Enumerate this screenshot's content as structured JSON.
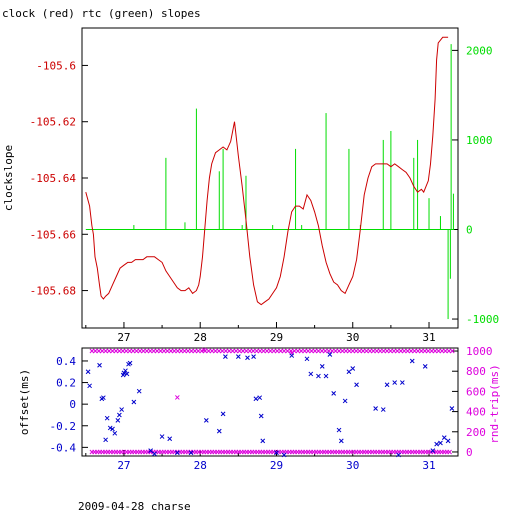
{
  "title": "clock (red) rtc (green) slopes",
  "footer": "2009-04-28 charse",
  "colors": {
    "clock": "#cc0000",
    "rtc": "#00dd00",
    "offset": "#0000cc",
    "rtt": "#dd00dd",
    "axis": "#000000"
  },
  "chart_data": [
    {
      "type": "line",
      "ylabel": "clockslope",
      "y2label": "",
      "xlim": [
        26.45,
        31.38
      ],
      "ylim": [
        -105.6933,
        -105.5867
      ],
      "y2lim": [
        -1100,
        2250
      ],
      "xticks": [
        "27",
        "28",
        "29",
        "30",
        "31"
      ],
      "yticks": [
        "-105.6",
        "-105.62",
        "-105.64",
        "-105.66",
        "-105.68"
      ],
      "y2ticks": [
        "2000",
        "1000",
        "0",
        "-1000"
      ],
      "grid": false,
      "series": [
        {
          "name": "clock",
          "axis": "left",
          "points": [
            [
              26.5,
              -105.645
            ],
            [
              26.55,
              -105.65
            ],
            [
              26.58,
              -105.657
            ],
            [
              26.6,
              -105.66
            ],
            [
              26.62,
              -105.668
            ],
            [
              26.65,
              -105.672
            ],
            [
              26.68,
              -105.678
            ],
            [
              26.7,
              -105.682
            ],
            [
              26.73,
              -105.683
            ],
            [
              26.76,
              -105.682
            ],
            [
              26.8,
              -105.681
            ],
            [
              26.85,
              -105.678
            ],
            [
              26.9,
              -105.675
            ],
            [
              26.95,
              -105.672
            ],
            [
              27.0,
              -105.671
            ],
            [
              27.05,
              -105.67
            ],
            [
              27.1,
              -105.67
            ],
            [
              27.15,
              -105.669
            ],
            [
              27.2,
              -105.669
            ],
            [
              27.25,
              -105.669
            ],
            [
              27.3,
              -105.668
            ],
            [
              27.35,
              -105.668
            ],
            [
              27.4,
              -105.668
            ],
            [
              27.45,
              -105.669
            ],
            [
              27.5,
              -105.67
            ],
            [
              27.55,
              -105.673
            ],
            [
              27.6,
              -105.675
            ],
            [
              27.65,
              -105.677
            ],
            [
              27.7,
              -105.679
            ],
            [
              27.75,
              -105.68
            ],
            [
              27.8,
              -105.68
            ],
            [
              27.85,
              -105.679
            ],
            [
              27.9,
              -105.681
            ],
            [
              27.95,
              -105.68
            ],
            [
              27.98,
              -105.678
            ],
            [
              28.0,
              -105.675
            ],
            [
              28.03,
              -105.668
            ],
            [
              28.06,
              -105.658
            ],
            [
              28.09,
              -105.648
            ],
            [
              28.12,
              -105.64
            ],
            [
              28.15,
              -105.635
            ],
            [
              28.2,
              -105.631
            ],
            [
              28.25,
              -105.63
            ],
            [
              28.3,
              -105.629
            ],
            [
              28.35,
              -105.63
            ],
            [
              28.4,
              -105.627
            ],
            [
              28.45,
              -105.62
            ],
            [
              28.47,
              -105.625
            ],
            [
              28.5,
              -105.632
            ],
            [
              28.55,
              -105.643
            ],
            [
              28.6,
              -105.655
            ],
            [
              28.65,
              -105.668
            ],
            [
              28.7,
              -105.678
            ],
            [
              28.75,
              -105.684
            ],
            [
              28.8,
              -105.685
            ],
            [
              28.85,
              -105.684
            ],
            [
              28.9,
              -105.683
            ],
            [
              28.95,
              -105.681
            ],
            [
              29.0,
              -105.679
            ],
            [
              29.05,
              -105.675
            ],
            [
              29.1,
              -105.668
            ],
            [
              29.15,
              -105.659
            ],
            [
              29.2,
              -105.652
            ],
            [
              29.25,
              -105.65
            ],
            [
              29.3,
              -105.65
            ],
            [
              29.35,
              -105.651
            ],
            [
              29.4,
              -105.646
            ],
            [
              29.45,
              -105.648
            ],
            [
              29.5,
              -105.652
            ],
            [
              29.55,
              -105.657
            ],
            [
              29.6,
              -105.664
            ],
            [
              29.65,
              -105.67
            ],
            [
              29.7,
              -105.674
            ],
            [
              29.75,
              -105.677
            ],
            [
              29.8,
              -105.678
            ],
            [
              29.85,
              -105.68
            ],
            [
              29.9,
              -105.681
            ],
            [
              29.95,
              -105.678
            ],
            [
              30.0,
              -105.675
            ],
            [
              30.05,
              -105.669
            ],
            [
              30.1,
              -105.658
            ],
            [
              30.15,
              -105.646
            ],
            [
              30.2,
              -105.64
            ],
            [
              30.25,
              -105.636
            ],
            [
              30.3,
              -105.635
            ],
            [
              30.35,
              -105.635
            ],
            [
              30.4,
              -105.635
            ],
            [
              30.45,
              -105.635
            ],
            [
              30.5,
              -105.636
            ],
            [
              30.55,
              -105.635
            ],
            [
              30.6,
              -105.636
            ],
            [
              30.65,
              -105.637
            ],
            [
              30.7,
              -105.638
            ],
            [
              30.75,
              -105.64
            ],
            [
              30.8,
              -105.643
            ],
            [
              30.85,
              -105.645
            ],
            [
              30.9,
              -105.644
            ],
            [
              30.93,
              -105.645
            ],
            [
              30.96,
              -105.643
            ],
            [
              30.99,
              -105.641
            ],
            [
              31.02,
              -105.635
            ],
            [
              31.05,
              -105.625
            ],
            [
              31.08,
              -105.612
            ],
            [
              31.1,
              -105.598
            ],
            [
              31.12,
              -105.592
            ],
            [
              31.15,
              -105.591
            ],
            [
              31.18,
              -105.59
            ],
            [
              31.25,
              -105.59
            ]
          ]
        },
        {
          "name": "rtc",
          "axis": "right",
          "baseline": 0,
          "xrange": [
            26.5,
            31.33
          ],
          "spikes": [
            [
              27.13,
              50
            ],
            [
              27.55,
              800
            ],
            [
              27.8,
              80
            ],
            [
              27.95,
              1350
            ],
            [
              28.25,
              650
            ],
            [
              28.3,
              900
            ],
            [
              28.55,
              50
            ],
            [
              28.6,
              600
            ],
            [
              28.95,
              50
            ],
            [
              29.25,
              900
            ],
            [
              29.33,
              50
            ],
            [
              29.65,
              1300
            ],
            [
              29.95,
              900
            ],
            [
              30.1,
              50
            ],
            [
              30.4,
              1000
            ],
            [
              30.5,
              1100
            ],
            [
              30.8,
              800
            ],
            [
              30.85,
              1000
            ],
            [
              31.0,
              350
            ],
            [
              31.15,
              150
            ],
            [
              31.25,
              -1000
            ],
            [
              31.28,
              -550
            ],
            [
              31.29,
              2070
            ],
            [
              31.32,
              400
            ]
          ]
        }
      ]
    },
    {
      "type": "scatter",
      "ylabel": "offset(ms)",
      "y2label": "rnd-trip(ms)",
      "xlim": [
        26.45,
        31.38
      ],
      "ylim": [
        -0.48,
        0.52
      ],
      "y2lim": [
        -40,
        1030
      ],
      "xticks": [
        "27",
        "28",
        "29",
        "30",
        "31"
      ],
      "yticks": [
        "0.4",
        "0.2",
        "0",
        "-0.2",
        "-0.4"
      ],
      "y2ticks": [
        "1000",
        "800",
        "600",
        "400",
        "200",
        "0"
      ],
      "grid": false,
      "series": [
        {
          "name": "offset",
          "axis": "left",
          "marker": "x",
          "points": [
            [
              26.53,
              0.3
            ],
            [
              26.55,
              0.17
            ],
            [
              26.68,
              0.36
            ],
            [
              26.71,
              0.05
            ],
            [
              26.73,
              0.06
            ],
            [
              26.76,
              -0.33
            ],
            [
              26.78,
              -0.13
            ],
            [
              26.82,
              -0.22
            ],
            [
              26.85,
              -0.23
            ],
            [
              26.88,
              -0.27
            ],
            [
              26.92,
              -0.15
            ],
            [
              26.94,
              -0.1
            ],
            [
              26.97,
              -0.05
            ],
            [
              26.99,
              0.27
            ],
            [
              27.0,
              0.29
            ],
            [
              27.02,
              0.31
            ],
            [
              27.04,
              0.28
            ],
            [
              27.06,
              0.37
            ],
            [
              27.08,
              0.38
            ],
            [
              27.13,
              0.02
            ],
            [
              27.2,
              0.12
            ],
            [
              27.35,
              -0.43
            ],
            [
              27.4,
              -0.46
            ],
            [
              27.5,
              -0.3
            ],
            [
              27.6,
              -0.32
            ],
            [
              27.7,
              -0.45
            ],
            [
              27.88,
              -0.45
            ],
            [
              28.08,
              -0.15
            ],
            [
              28.25,
              -0.25
            ],
            [
              28.3,
              -0.09
            ],
            [
              28.33,
              0.44
            ],
            [
              28.5,
              0.44
            ],
            [
              28.62,
              0.43
            ],
            [
              28.7,
              0.44
            ],
            [
              28.73,
              0.05
            ],
            [
              28.78,
              0.06
            ],
            [
              28.8,
              -0.11
            ],
            [
              28.82,
              -0.34
            ],
            [
              29.0,
              -0.45
            ],
            [
              29.2,
              0.45
            ],
            [
              29.4,
              0.42
            ],
            [
              29.45,
              0.28
            ],
            [
              29.55,
              0.26
            ],
            [
              29.6,
              0.35
            ],
            [
              29.65,
              0.26
            ],
            [
              29.7,
              0.46
            ],
            [
              29.75,
              0.1
            ],
            [
              29.82,
              -0.24
            ],
            [
              29.85,
              -0.34
            ],
            [
              29.9,
              0.03
            ],
            [
              29.95,
              0.3
            ],
            [
              30.0,
              0.33
            ],
            [
              30.05,
              0.18
            ],
            [
              30.3,
              -0.04
            ],
            [
              30.4,
              -0.05
            ],
            [
              30.45,
              0.18
            ],
            [
              30.55,
              0.2
            ],
            [
              30.65,
              0.2
            ],
            [
              30.78,
              0.4
            ],
            [
              30.95,
              0.35
            ],
            [
              31.05,
              -0.43
            ],
            [
              31.1,
              -0.37
            ],
            [
              31.15,
              -0.36
            ],
            [
              31.2,
              -0.31
            ],
            [
              31.25,
              -0.34
            ],
            [
              31.3,
              -0.04
            ],
            [
              30.6,
              -0.47
            ],
            [
              29.1,
              -0.47
            ]
          ]
        },
        {
          "name": "rnd-trip",
          "axis": "right",
          "marker": "x",
          "upper_band": {
            "y": 1000,
            "xrange": [
              26.58,
              31.32
            ],
            "step": 0.045
          },
          "lower_band": {
            "y": 0,
            "xrange": [
              26.58,
              31.3
            ],
            "step": 0.035
          },
          "extra_points": [
            [
              27.7,
              540
            ],
            [
              28.05,
              1010
            ],
            [
              29.2,
              980
            ]
          ]
        }
      ]
    }
  ]
}
